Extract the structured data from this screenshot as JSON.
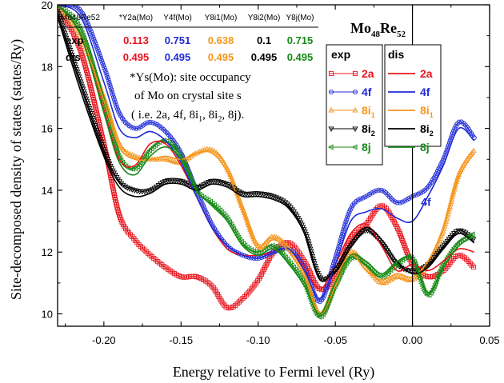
{
  "chart_data": {
    "type": "line",
    "title": "",
    "xlabel": "Energy relative to Fermi level (Ry)",
    "ylabel": "Site-decomposed density of states (states/Ry)",
    "xlim": [
      -0.23,
      0.05
    ],
    "ylim": [
      9.6,
      20
    ],
    "x_ticks": [
      "-0.20",
      "-0.15",
      "-0.10",
      "-0.05",
      "0.00",
      "0.05"
    ],
    "y_ticks": [
      "10",
      "12",
      "14",
      "16",
      "18",
      "20"
    ],
    "fermi_line_x": 0.0,
    "grid": false,
    "compound": {
      "base": "Mo",
      "sub1": "48",
      "mid": "Re",
      "sub2": "52"
    },
    "table": {
      "header": [
        "Mo48Re52",
        "*Y2a(Mo)",
        "Y4f(Mo)",
        "Y8i1(Mo)",
        "Y8i2(Mo)",
        "Y8j(Mo)"
      ],
      "rows": [
        {
          "label": "exp",
          "values": [
            "0.113",
            "0.751",
            "0.638",
            "0.1",
            "0.715"
          ]
        },
        {
          "label": "dis",
          "values": [
            "0.495",
            "0.495",
            "0.495",
            "0.495",
            "0.495"
          ]
        }
      ],
      "colors": [
        "#e8141c",
        "#1f2bd6",
        "#f5961e",
        "#000000",
        "#178a17"
      ]
    },
    "note": [
      "*Ys(Mo): site occupancy",
      "of Mo on crystal site s",
      "( i.e. 2a, 4f, 8i",
      ", 8i",
      ", 8j)."
    ],
    "note_subs": [
      "1",
      "2"
    ],
    "legend_exp": {
      "title": "exp",
      "entries": [
        {
          "base": "2a",
          "sub": "",
          "color": "#e8141c",
          "marker": "square"
        },
        {
          "base": "4f",
          "sub": "",
          "color": "#1f2bd6",
          "marker": "circle"
        },
        {
          "base": "8i",
          "sub": "1",
          "color": "#f5961e",
          "marker": "triangle-up"
        },
        {
          "base": "8i",
          "sub": "2",
          "color": "#000000",
          "marker": "triangle-down"
        },
        {
          "base": "8j",
          "sub": "",
          "color": "#178a17",
          "marker": "triangle-left"
        }
      ]
    },
    "legend_dis": {
      "title": "dis",
      "entries": [
        {
          "base": "2a",
          "sub": "",
          "color": "#e8141c"
        },
        {
          "base": "4f",
          "sub": "",
          "color": "#1f2bd6"
        },
        {
          "base": "8i",
          "sub": "1",
          "color": "#f5961e"
        },
        {
          "base": "8i",
          "sub": "2",
          "color": "#000000"
        },
        {
          "base": "8j",
          "sub": "",
          "color": "#178a17"
        }
      ]
    },
    "annotation": {
      "text": "4f",
      "x": 0.0055,
      "y": 13.5,
      "color": "#1f2bd6"
    },
    "series": [
      {
        "name": "2a",
        "kind": "exp",
        "color": "#e8141c",
        "marker": "square",
        "x": [
          -0.23,
          -0.215,
          -0.2,
          -0.19,
          -0.18,
          -0.17,
          -0.16,
          -0.15,
          -0.14,
          -0.13,
          -0.12,
          -0.11,
          -0.1,
          -0.09,
          -0.08,
          -0.07,
          -0.06,
          -0.05,
          -0.04,
          -0.03,
          -0.02,
          -0.01,
          0,
          0.01,
          0.02,
          0.03,
          0.04
        ],
        "y": [
          19.9,
          18.5,
          15.5,
          13.2,
          12.4,
          11.9,
          11.5,
          11.2,
          11.2,
          10.9,
          10.2,
          10.5,
          11.1,
          12.0,
          12.3,
          11.7,
          10.8,
          11.2,
          12.4,
          12.9,
          13.5,
          12.8,
          11.6,
          11.2,
          11.4,
          11.9,
          11.5
        ]
      },
      {
        "name": "4f",
        "kind": "exp",
        "color": "#1f2bd6",
        "marker": "circle",
        "x": [
          -0.23,
          -0.215,
          -0.2,
          -0.19,
          -0.18,
          -0.17,
          -0.16,
          -0.15,
          -0.14,
          -0.13,
          -0.12,
          -0.11,
          -0.1,
          -0.09,
          -0.08,
          -0.07,
          -0.06,
          -0.05,
          -0.04,
          -0.03,
          -0.02,
          -0.01,
          0,
          0.01,
          0.02,
          0.03,
          0.04
        ],
        "y": [
          20.0,
          19.8,
          18.0,
          16.5,
          16.0,
          16.2,
          15.9,
          15.2,
          14.0,
          12.9,
          12.2,
          11.9,
          11.8,
          12.0,
          12.1,
          11.5,
          10.4,
          11.8,
          13.4,
          13.8,
          14.0,
          13.6,
          13.8,
          14.1,
          15.0,
          16.2,
          15.7
        ]
      },
      {
        "name": "8i1",
        "kind": "exp",
        "color": "#f5961e",
        "marker": "triangle-up",
        "x": [
          -0.23,
          -0.215,
          -0.2,
          -0.19,
          -0.18,
          -0.17,
          -0.16,
          -0.15,
          -0.14,
          -0.13,
          -0.12,
          -0.11,
          -0.1,
          -0.09,
          -0.08,
          -0.07,
          -0.06,
          -0.05,
          -0.04,
          -0.03,
          -0.02,
          -0.01,
          0,
          0.01,
          0.02,
          0.03,
          0.04
        ],
        "y": [
          20.0,
          19.0,
          17.0,
          15.5,
          15.1,
          15.0,
          15.0,
          14.9,
          15.2,
          15.3,
          14.7,
          13.4,
          12.2,
          12.5,
          12.1,
          11.3,
          10.0,
          11.0,
          12.0,
          11.5,
          11.0,
          11.2,
          11.1,
          11.6,
          12.7,
          14.5,
          15.3
        ]
      },
      {
        "name": "8i2",
        "kind": "exp",
        "color": "#000000",
        "marker": "triangle-down",
        "x": [
          -0.23,
          -0.215,
          -0.2,
          -0.19,
          -0.18,
          -0.17,
          -0.16,
          -0.15,
          -0.14,
          -0.13,
          -0.12,
          -0.11,
          -0.1,
          -0.09,
          -0.08,
          -0.07,
          -0.06,
          -0.05,
          -0.04,
          -0.03,
          -0.02,
          -0.01,
          0,
          0.01,
          0.02,
          0.03,
          0.04
        ],
        "y": [
          19.8,
          17.5,
          15.3,
          14.3,
          14.0,
          14.0,
          14.3,
          14.3,
          14.1,
          14.3,
          14.2,
          13.9,
          13.9,
          13.8,
          13.5,
          12.7,
          11.2,
          11.4,
          12.2,
          12.7,
          12.3,
          11.6,
          11.4,
          11.6,
          12.2,
          12.7,
          12.4
        ]
      },
      {
        "name": "8j",
        "kind": "exp",
        "color": "#178a17",
        "marker": "triangle-left",
        "x": [
          -0.23,
          -0.215,
          -0.2,
          -0.19,
          -0.18,
          -0.17,
          -0.16,
          -0.15,
          -0.14,
          -0.13,
          -0.12,
          -0.11,
          -0.1,
          -0.09,
          -0.08,
          -0.07,
          -0.06,
          -0.05,
          -0.04,
          -0.03,
          -0.02,
          -0.01,
          0,
          0.01,
          0.02,
          0.03,
          0.04
        ],
        "y": [
          20.0,
          19.2,
          16.8,
          15.1,
          14.7,
          15.3,
          15.6,
          15.1,
          14.0,
          13.6,
          13.1,
          12.3,
          12.0,
          12.2,
          11.7,
          11.0,
          9.9,
          10.9,
          11.8,
          11.6,
          11.2,
          11.6,
          11.8,
          10.6,
          11.6,
          12.3,
          12.6
        ]
      },
      {
        "name": "2a",
        "kind": "dis",
        "color": "#e8141c",
        "x": [
          -0.23,
          -0.215,
          -0.2,
          -0.19,
          -0.18,
          -0.17,
          -0.16,
          -0.15,
          -0.14,
          -0.13,
          -0.12,
          -0.11,
          -0.1,
          -0.09,
          -0.08,
          -0.07,
          -0.06,
          -0.05,
          -0.04,
          -0.03,
          -0.02,
          -0.01,
          0,
          0.01,
          0.02,
          0.03,
          0.04
        ],
        "y": [
          20.0,
          19.0,
          16.6,
          15.0,
          14.8,
          15.5,
          15.5,
          14.8,
          13.8,
          12.8,
          12.1,
          11.9,
          11.9,
          12.0,
          12.1,
          11.5,
          10.8,
          11.6,
          12.6,
          12.9,
          12.2,
          11.4,
          11.6,
          11.4,
          11.7,
          12.1,
          12.0
        ]
      },
      {
        "name": "4f",
        "kind": "dis",
        "color": "#1f2bd6",
        "x": [
          -0.23,
          -0.215,
          -0.2,
          -0.19,
          -0.18,
          -0.17,
          -0.16,
          -0.15,
          -0.14,
          -0.13,
          -0.12,
          -0.11,
          -0.1,
          -0.09,
          -0.08,
          -0.07,
          -0.06,
          -0.05,
          -0.04,
          -0.03,
          -0.02,
          -0.01,
          0,
          0.01,
          0.02,
          0.03,
          0.04
        ],
        "y": [
          20.0,
          19.6,
          17.5,
          16.0,
          15.7,
          15.9,
          15.6,
          14.9,
          13.8,
          12.8,
          12.2,
          11.9,
          11.8,
          12.0,
          12.1,
          11.4,
          10.5,
          11.6,
          13.0,
          13.3,
          13.4,
          13.1,
          13.0,
          13.8,
          14.8,
          16.0,
          15.6
        ]
      },
      {
        "name": "8i1",
        "kind": "dis",
        "color": "#f5961e",
        "x": [
          -0.23,
          -0.215,
          -0.2,
          -0.19,
          -0.18,
          -0.17,
          -0.16,
          -0.15,
          -0.14,
          -0.13,
          -0.12,
          -0.11,
          -0.1,
          -0.09,
          -0.08,
          -0.07,
          -0.06,
          -0.05,
          -0.04,
          -0.03,
          -0.02,
          -0.01,
          0,
          0.01,
          0.02,
          0.03,
          0.04
        ],
        "y": [
          20.0,
          19.0,
          16.9,
          15.4,
          15.0,
          15.0,
          15.1,
          15.0,
          15.2,
          15.2,
          14.6,
          13.3,
          12.1,
          12.4,
          12.0,
          11.2,
          10.0,
          10.9,
          11.9,
          11.4,
          11.1,
          11.3,
          11.2,
          11.7,
          12.8,
          14.4,
          15.2
        ]
      },
      {
        "name": "8i2",
        "kind": "dis",
        "color": "#000000",
        "x": [
          -0.23,
          -0.215,
          -0.2,
          -0.19,
          -0.18,
          -0.17,
          -0.16,
          -0.15,
          -0.14,
          -0.13,
          -0.12,
          -0.11,
          -0.1,
          -0.09,
          -0.08,
          -0.07,
          -0.06,
          -0.05,
          -0.04,
          -0.03,
          -0.02,
          -0.01,
          0,
          0.01,
          0.02,
          0.03,
          0.04
        ],
        "y": [
          19.6,
          17.2,
          15.1,
          14.1,
          13.8,
          13.9,
          14.2,
          14.2,
          14.0,
          14.2,
          14.1,
          13.8,
          13.8,
          13.7,
          13.4,
          12.6,
          11.1,
          11.5,
          12.3,
          12.8,
          12.4,
          11.7,
          11.3,
          11.5,
          12.1,
          12.6,
          12.3
        ]
      },
      {
        "name": "8j",
        "kind": "dis",
        "color": "#178a17",
        "x": [
          -0.23,
          -0.215,
          -0.2,
          -0.19,
          -0.18,
          -0.17,
          -0.16,
          -0.15,
          -0.14,
          -0.13,
          -0.12,
          -0.11,
          -0.1,
          -0.09,
          -0.08,
          -0.07,
          -0.06,
          -0.05,
          -0.04,
          -0.03,
          -0.02,
          -0.01,
          0,
          0.01,
          0.02,
          0.03,
          0.04
        ],
        "y": [
          20.0,
          19.0,
          16.5,
          14.9,
          14.5,
          15.1,
          15.4,
          15.0,
          14.0,
          13.5,
          13.0,
          12.2,
          11.9,
          12.1,
          11.6,
          10.9,
          10.0,
          11.0,
          11.9,
          11.7,
          11.3,
          11.7,
          11.8,
          10.7,
          11.5,
          12.2,
          12.5
        ]
      }
    ]
  }
}
